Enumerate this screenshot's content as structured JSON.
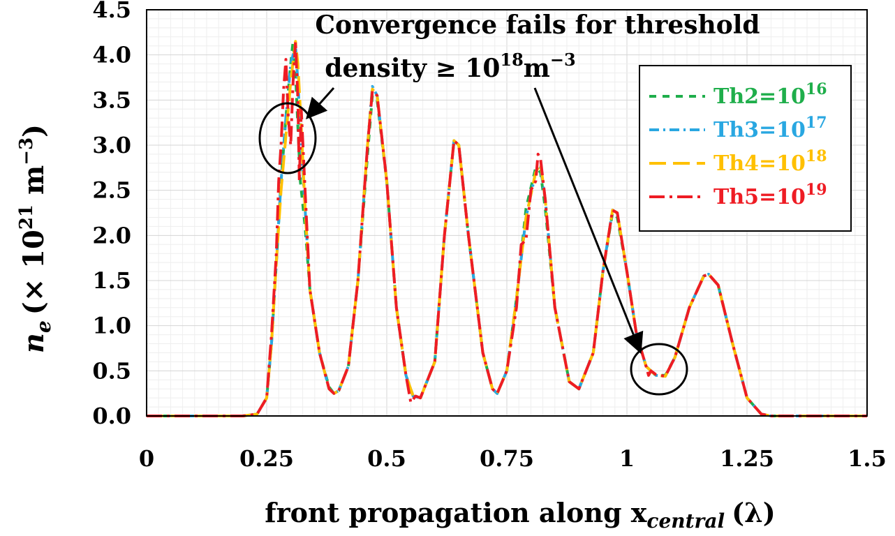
{
  "chart_data": {
    "type": "line",
    "title": "",
    "xlabel": "front propagation along x",
    "xlabel_sub": "central",
    "xlabel_unit": "(λ)",
    "ylabel": "n",
    "ylabel_sub": "e",
    "ylabel_unit": "(× 10",
    "ylabel_unit_exp": "21",
    "ylabel_unit_tail": " m",
    "ylabel_unit_tail_exp": "−3",
    "ylabel_unit_close": ")",
    "xlim": [
      0,
      1.5
    ],
    "ylim": [
      0,
      4.5
    ],
    "grid": true,
    "legend_position": "top-right",
    "x_ticks": [
      0,
      0.25,
      0.5,
      0.75,
      1,
      1.25,
      1.5
    ],
    "x_tick_labels": [
      "0",
      "0.25",
      "0.5",
      "0.75",
      "1",
      "1.25",
      "1.5"
    ],
    "y_ticks": [
      0,
      0.5,
      1.0,
      1.5,
      2.0,
      2.5,
      3.0,
      3.5,
      4.0,
      4.5
    ],
    "y_tick_labels": [
      "0.0",
      "0.5",
      "1.0",
      "1.5",
      "2.0",
      "2.5",
      "3.0",
      "3.5",
      "4.0",
      "4.5"
    ],
    "annotation": {
      "line1": "Convergence fails for threshold",
      "line2_prefix": "density ≥ 10",
      "line2_exp": "18",
      "line2_unit": "m",
      "line2_unit_exp": "−3"
    },
    "series": [
      {
        "label_prefix": "Th2=10",
        "label_exp": "16",
        "color": "#1fae4b",
        "dash": "10 9",
        "points": [
          [
            0,
            0
          ],
          [
            0.2,
            0
          ],
          [
            0.23,
            0.02
          ],
          [
            0.25,
            0.2
          ],
          [
            0.26,
            0.8
          ],
          [
            0.27,
            1.7
          ],
          [
            0.28,
            2.6
          ],
          [
            0.29,
            3.3
          ],
          [
            0.3,
            3.9
          ],
          [
            0.305,
            4.15
          ],
          [
            0.31,
            3.8
          ],
          [
            0.315,
            3.2
          ],
          [
            0.32,
            2.6
          ],
          [
            0.33,
            2.1
          ],
          [
            0.34,
            1.4
          ],
          [
            0.36,
            0.7
          ],
          [
            0.38,
            0.32
          ],
          [
            0.39,
            0.25
          ],
          [
            0.4,
            0.28
          ],
          [
            0.42,
            0.55
          ],
          [
            0.44,
            1.5
          ],
          [
            0.46,
            2.9
          ],
          [
            0.47,
            3.55
          ],
          [
            0.48,
            3.5
          ],
          [
            0.5,
            2.6
          ],
          [
            0.52,
            1.2
          ],
          [
            0.54,
            0.45
          ],
          [
            0.555,
            0.22
          ],
          [
            0.57,
            0.2
          ],
          [
            0.6,
            0.6
          ],
          [
            0.62,
            2.0
          ],
          [
            0.64,
            3.05
          ],
          [
            0.65,
            3.0
          ],
          [
            0.67,
            2.0
          ],
          [
            0.7,
            0.7
          ],
          [
            0.72,
            0.3
          ],
          [
            0.73,
            0.25
          ],
          [
            0.75,
            0.5
          ],
          [
            0.77,
            1.3
          ],
          [
            0.79,
            2.3
          ],
          [
            0.81,
            2.75
          ],
          [
            0.82,
            2.7
          ],
          [
            0.83,
            2.3
          ],
          [
            0.85,
            1.2
          ],
          [
            0.88,
            0.38
          ],
          [
            0.9,
            0.3
          ],
          [
            0.93,
            0.7
          ],
          [
            0.95,
            1.6
          ],
          [
            0.97,
            2.25
          ],
          [
            0.98,
            2.2
          ],
          [
            1.0,
            1.6
          ],
          [
            1.02,
            0.9
          ],
          [
            1.04,
            0.55
          ],
          [
            1.06,
            0.45
          ],
          [
            1.08,
            0.45
          ],
          [
            1.1,
            0.65
          ],
          [
            1.13,
            1.2
          ],
          [
            1.16,
            1.55
          ],
          [
            1.17,
            1.57
          ],
          [
            1.19,
            1.45
          ],
          [
            1.22,
            0.8
          ],
          [
            1.25,
            0.2
          ],
          [
            1.28,
            0.02
          ],
          [
            1.3,
            0
          ],
          [
            1.5,
            0
          ]
        ]
      },
      {
        "label_prefix": "Th3=10",
        "label_exp": "17",
        "color": "#29a7e1",
        "dash": "14 6 3 6",
        "points": [
          [
            0,
            0
          ],
          [
            0.2,
            0
          ],
          [
            0.23,
            0.02
          ],
          [
            0.25,
            0.2
          ],
          [
            0.26,
            0.8
          ],
          [
            0.27,
            1.7
          ],
          [
            0.28,
            2.6
          ],
          [
            0.29,
            3.3
          ],
          [
            0.3,
            3.9
          ],
          [
            0.31,
            4.1
          ],
          [
            0.315,
            3.7
          ],
          [
            0.32,
            3.2
          ],
          [
            0.33,
            2.3
          ],
          [
            0.34,
            1.4
          ],
          [
            0.36,
            0.7
          ],
          [
            0.38,
            0.3
          ],
          [
            0.39,
            0.25
          ],
          [
            0.4,
            0.28
          ],
          [
            0.42,
            0.55
          ],
          [
            0.44,
            1.5
          ],
          [
            0.46,
            3.0
          ],
          [
            0.47,
            3.65
          ],
          [
            0.48,
            3.55
          ],
          [
            0.5,
            2.6
          ],
          [
            0.52,
            1.2
          ],
          [
            0.54,
            0.45
          ],
          [
            0.555,
            0.22
          ],
          [
            0.57,
            0.2
          ],
          [
            0.6,
            0.6
          ],
          [
            0.62,
            2.0
          ],
          [
            0.64,
            3.05
          ],
          [
            0.65,
            3.0
          ],
          [
            0.67,
            2.0
          ],
          [
            0.7,
            0.7
          ],
          [
            0.72,
            0.3
          ],
          [
            0.73,
            0.25
          ],
          [
            0.75,
            0.5
          ],
          [
            0.77,
            1.3
          ],
          [
            0.79,
            2.2
          ],
          [
            0.81,
            2.7
          ],
          [
            0.82,
            2.75
          ],
          [
            0.83,
            2.4
          ],
          [
            0.85,
            1.2
          ],
          [
            0.88,
            0.38
          ],
          [
            0.9,
            0.3
          ],
          [
            0.93,
            0.7
          ],
          [
            0.95,
            1.6
          ],
          [
            0.97,
            2.28
          ],
          [
            0.98,
            2.25
          ],
          [
            1.0,
            1.6
          ],
          [
            1.02,
            0.9
          ],
          [
            1.04,
            0.55
          ],
          [
            1.06,
            0.45
          ],
          [
            1.08,
            0.44
          ],
          [
            1.1,
            0.65
          ],
          [
            1.13,
            1.2
          ],
          [
            1.16,
            1.55
          ],
          [
            1.17,
            1.57
          ],
          [
            1.19,
            1.45
          ],
          [
            1.22,
            0.8
          ],
          [
            1.25,
            0.2
          ],
          [
            1.28,
            0.02
          ],
          [
            1.3,
            0
          ],
          [
            1.5,
            0
          ]
        ]
      },
      {
        "label_prefix": "Th4=10",
        "label_exp": "18",
        "color": "#ffc000",
        "dash": "24 10",
        "points": [
          [
            0,
            0
          ],
          [
            0.2,
            0
          ],
          [
            0.23,
            0.02
          ],
          [
            0.25,
            0.2
          ],
          [
            0.26,
            0.8
          ],
          [
            0.27,
            1.7
          ],
          [
            0.28,
            2.5
          ],
          [
            0.29,
            3.1
          ],
          [
            0.3,
            3.7
          ],
          [
            0.31,
            4.15
          ],
          [
            0.315,
            3.9
          ],
          [
            0.32,
            3.4
          ],
          [
            0.33,
            2.3
          ],
          [
            0.34,
            1.4
          ],
          [
            0.36,
            0.7
          ],
          [
            0.38,
            0.3
          ],
          [
            0.39,
            0.25
          ],
          [
            0.4,
            0.28
          ],
          [
            0.42,
            0.55
          ],
          [
            0.44,
            1.5
          ],
          [
            0.46,
            3.0
          ],
          [
            0.47,
            3.62
          ],
          [
            0.48,
            3.55
          ],
          [
            0.5,
            2.6
          ],
          [
            0.52,
            1.2
          ],
          [
            0.54,
            0.45
          ],
          [
            0.555,
            0.22
          ],
          [
            0.57,
            0.2
          ],
          [
            0.6,
            0.6
          ],
          [
            0.62,
            2.0
          ],
          [
            0.64,
            3.05
          ],
          [
            0.65,
            3.0
          ],
          [
            0.67,
            2.0
          ],
          [
            0.7,
            0.7
          ],
          [
            0.72,
            0.3
          ],
          [
            0.73,
            0.25
          ],
          [
            0.75,
            0.5
          ],
          [
            0.77,
            1.3
          ],
          [
            0.79,
            2.2
          ],
          [
            0.81,
            2.7
          ],
          [
            0.82,
            2.8
          ],
          [
            0.83,
            2.4
          ],
          [
            0.85,
            1.2
          ],
          [
            0.88,
            0.38
          ],
          [
            0.9,
            0.3
          ],
          [
            0.93,
            0.7
          ],
          [
            0.95,
            1.6
          ],
          [
            0.97,
            2.28
          ],
          [
            0.98,
            2.25
          ],
          [
            1.0,
            1.6
          ],
          [
            1.02,
            0.9
          ],
          [
            1.04,
            0.55
          ],
          [
            1.06,
            0.45
          ],
          [
            1.08,
            0.44
          ],
          [
            1.1,
            0.65
          ],
          [
            1.13,
            1.2
          ],
          [
            1.16,
            1.55
          ],
          [
            1.17,
            1.57
          ],
          [
            1.19,
            1.45
          ],
          [
            1.22,
            0.8
          ],
          [
            1.25,
            0.2
          ],
          [
            1.28,
            0.02
          ],
          [
            1.3,
            0
          ],
          [
            1.5,
            0
          ]
        ]
      },
      {
        "label_prefix": "Th5=10",
        "label_exp": "19",
        "color": "#ee1c24",
        "dash": "22 7 4 7",
        "points": [
          [
            0,
            0
          ],
          [
            0.2,
            0
          ],
          [
            0.23,
            0.02
          ],
          [
            0.25,
            0.2
          ],
          [
            0.26,
            0.9
          ],
          [
            0.27,
            1.8
          ],
          [
            0.275,
            2.6
          ],
          [
            0.28,
            3.0
          ],
          [
            0.285,
            3.6
          ],
          [
            0.29,
            3.95
          ],
          [
            0.295,
            3.3
          ],
          [
            0.3,
            3.0
          ],
          [
            0.305,
            3.7
          ],
          [
            0.31,
            4.15
          ],
          [
            0.315,
            3.5
          ],
          [
            0.318,
            2.6
          ],
          [
            0.322,
            3.4
          ],
          [
            0.33,
            2.5
          ],
          [
            0.34,
            1.4
          ],
          [
            0.36,
            0.7
          ],
          [
            0.38,
            0.3
          ],
          [
            0.39,
            0.25
          ],
          [
            0.4,
            0.28
          ],
          [
            0.42,
            0.55
          ],
          [
            0.44,
            1.5
          ],
          [
            0.46,
            3.0
          ],
          [
            0.47,
            3.6
          ],
          [
            0.48,
            3.55
          ],
          [
            0.5,
            2.6
          ],
          [
            0.52,
            1.2
          ],
          [
            0.54,
            0.45
          ],
          [
            0.55,
            0.15
          ],
          [
            0.56,
            0.22
          ],
          [
            0.57,
            0.2
          ],
          [
            0.6,
            0.6
          ],
          [
            0.62,
            2.0
          ],
          [
            0.64,
            3.05
          ],
          [
            0.65,
            3.0
          ],
          [
            0.67,
            2.0
          ],
          [
            0.7,
            0.7
          ],
          [
            0.72,
            0.3
          ],
          [
            0.73,
            0.25
          ],
          [
            0.75,
            0.5
          ],
          [
            0.77,
            1.2
          ],
          [
            0.78,
            1.9
          ],
          [
            0.79,
            1.95
          ],
          [
            0.8,
            2.5
          ],
          [
            0.81,
            2.6
          ],
          [
            0.815,
            2.9
          ],
          [
            0.82,
            2.85
          ],
          [
            0.83,
            2.4
          ],
          [
            0.85,
            1.2
          ],
          [
            0.88,
            0.38
          ],
          [
            0.9,
            0.3
          ],
          [
            0.93,
            0.7
          ],
          [
            0.95,
            1.6
          ],
          [
            0.97,
            2.28
          ],
          [
            0.98,
            2.25
          ],
          [
            1.0,
            1.6
          ],
          [
            1.02,
            0.9
          ],
          [
            1.04,
            0.55
          ],
          [
            1.045,
            0.45
          ],
          [
            1.05,
            0.5
          ],
          [
            1.06,
            0.46
          ],
          [
            1.08,
            0.44
          ],
          [
            1.1,
            0.65
          ],
          [
            1.13,
            1.2
          ],
          [
            1.16,
            1.55
          ],
          [
            1.17,
            1.57
          ],
          [
            1.19,
            1.45
          ],
          [
            1.22,
            0.8
          ],
          [
            1.25,
            0.2
          ],
          [
            1.28,
            0.02
          ],
          [
            1.3,
            0
          ],
          [
            1.5,
            0
          ]
        ]
      }
    ]
  }
}
